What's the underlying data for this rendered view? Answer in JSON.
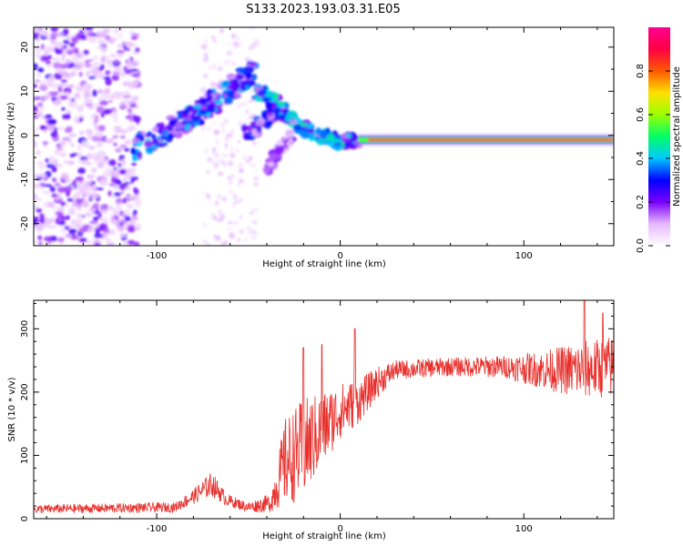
{
  "title": "S133.2023.193.03.31.E05",
  "colors": {
    "snr_line": "#e8302c",
    "axis": "#000000",
    "colorbar_stops": [
      "#ffffff",
      "#e6b8ff",
      "#7a00ff",
      "#0000ff",
      "#00c8ff",
      "#00ff66",
      "#9cff00",
      "#ffe000",
      "#ff5a00",
      "#ff0044",
      "#ff0090"
    ]
  },
  "chart_data": [
    {
      "type": "heatmap",
      "name": "spectrogram",
      "xlabel": "Height of straight line (km)",
      "ylabel": "Frequency (Hz)",
      "xlim": [
        -167,
        149
      ],
      "ylim": [
        -25,
        24.5
      ],
      "xticks": [
        -100,
        0,
        100
      ],
      "yticks": [
        -20,
        -10,
        0,
        10,
        20
      ],
      "colorbar": {
        "label": "Normalized spectral amplitude",
        "range": [
          0,
          1
        ],
        "ticks": [
          0.0,
          0.2,
          0.4,
          0.6,
          0.8
        ]
      },
      "features": [
        {
          "name": "noise_region",
          "x_range": [
            -167,
            -110
          ],
          "y_range": [
            -25,
            24.5
          ],
          "amplitude": 0.15
        },
        {
          "name": "scattered_band",
          "x_range": [
            -75,
            -45
          ],
          "y_range": [
            -25,
            24.5
          ],
          "amplitude": 0.08
        },
        {
          "name": "rising_track",
          "points": [
            [
              -113,
              -3
            ],
            [
              -98,
              0
            ],
            [
              -85,
              3
            ],
            [
              -75,
              6
            ],
            [
              -65,
              9
            ],
            [
              -55,
              12
            ],
            [
              -47,
              14
            ]
          ],
          "amplitude": 0.35
        },
        {
          "name": "descending_track",
          "points": [
            [
              -45,
              10
            ],
            [
              -37,
              8
            ],
            [
              -30,
              5
            ],
            [
              -22,
              2
            ],
            [
              -12,
              0
            ],
            [
              0,
              -1.5
            ],
            [
              10,
              -1
            ]
          ],
          "amplitude": 0.4
        },
        {
          "name": "secondary_track",
          "points": [
            [
              -52,
              0
            ],
            [
              -42,
              3
            ],
            [
              -35,
              6
            ]
          ],
          "amplitude": 0.3
        },
        {
          "name": "lower_branch",
          "points": [
            [
              -40,
              -8
            ],
            [
              -33,
              -3
            ],
            [
              -26,
              0
            ]
          ],
          "amplitude": 0.2
        },
        {
          "name": "steady_line",
          "x_range": [
            10,
            149
          ],
          "y": -1,
          "amplitude": 1.0
        }
      ]
    },
    {
      "type": "line",
      "name": "snr",
      "xlabel": "Height of straight line (km)",
      "ylabel": "SNR (10 * v/v)",
      "xlim": [
        -167,
        149
      ],
      "ylim": [
        0,
        345
      ],
      "xticks": [
        -100,
        0,
        100
      ],
      "yticks": [
        0,
        100,
        200,
        300
      ],
      "envelope": [
        {
          "x": -167,
          "base": 15,
          "amp": 7
        },
        {
          "x": -90,
          "base": 18,
          "amp": 8
        },
        {
          "x": -80,
          "base": 35,
          "amp": 12
        },
        {
          "x": -70,
          "base": 55,
          "amp": 20
        },
        {
          "x": -62,
          "base": 30,
          "amp": 10
        },
        {
          "x": -50,
          "base": 18,
          "amp": 8
        },
        {
          "x": -38,
          "base": 25,
          "amp": 15
        },
        {
          "x": -30,
          "base": 90,
          "amp": 70
        },
        {
          "x": -20,
          "base": 110,
          "amp": 80
        },
        {
          "x": -10,
          "base": 140,
          "amp": 60
        },
        {
          "x": 0,
          "base": 170,
          "amp": 45
        },
        {
          "x": 10,
          "base": 185,
          "amp": 35
        },
        {
          "x": 20,
          "base": 215,
          "amp": 25
        },
        {
          "x": 30,
          "base": 235,
          "amp": 15
        },
        {
          "x": 60,
          "base": 240,
          "amp": 15
        },
        {
          "x": 90,
          "base": 240,
          "amp": 18
        },
        {
          "x": 110,
          "base": 235,
          "amp": 30
        },
        {
          "x": 130,
          "base": 235,
          "amp": 45
        },
        {
          "x": 149,
          "base": 240,
          "amp": 50
        }
      ],
      "peaks": [
        {
          "x": -20,
          "y": 270
        },
        {
          "x": -10,
          "y": 275
        },
        {
          "x": 8,
          "y": 300
        },
        {
          "x": 133,
          "y": 345
        },
        {
          "x": 143,
          "y": 325
        }
      ]
    }
  ]
}
